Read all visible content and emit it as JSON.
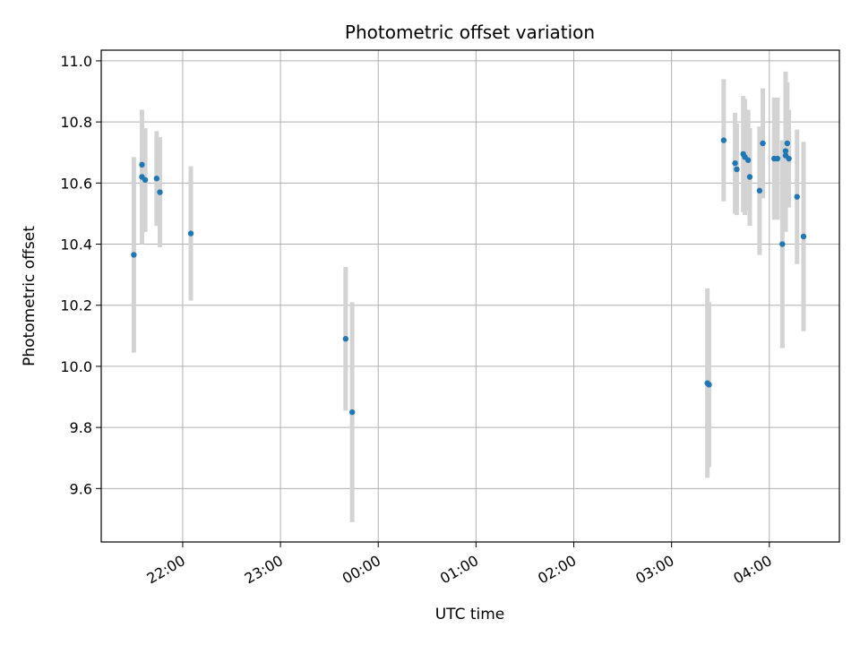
{
  "chart_data": {
    "type": "scatter",
    "title": "Photometric offset variation",
    "xlabel": "UTC time",
    "ylabel": "Photometric offset",
    "grid": true,
    "x_day_offset_hours": 0,
    "xlim": [
      "21:10",
      "04:43"
    ],
    "ylim": [
      9.425,
      11.035
    ],
    "x_ticks": [
      "22:00",
      "23:00",
      "00:00",
      "01:00",
      "02:00",
      "03:00",
      "04:00"
    ],
    "y_ticks": [
      9.6,
      9.8,
      10.0,
      10.2,
      10.4,
      10.6,
      10.8,
      11.0
    ],
    "y_tick_labels": [
      "9.6",
      "9.8",
      "10.0",
      "10.2",
      "10.4",
      "10.6",
      "10.8",
      "11.0"
    ],
    "marker_color": "#1f77b4",
    "errorbar_color": "#d3d3d3",
    "points": [
      {
        "x": "21:30",
        "y": 10.365,
        "err": 0.32
      },
      {
        "x": "21:35",
        "y": 10.62,
        "err": 0.22
      },
      {
        "x": "21:35",
        "y": 10.66,
        "err": 0.18
      },
      {
        "x": "21:37",
        "y": 10.61,
        "err": 0.17
      },
      {
        "x": "21:44",
        "y": 10.615,
        "err": 0.155
      },
      {
        "x": "21:46",
        "y": 10.57,
        "err": 0.18
      },
      {
        "x": "22:05",
        "y": 10.435,
        "err": 0.22
      },
      {
        "x": "23:40",
        "y": 10.09,
        "err": 0.235
      },
      {
        "x": "23:44",
        "y": 9.85,
        "err": 0.36
      },
      {
        "x": "03:22",
        "y": 9.945,
        "err": 0.31
      },
      {
        "x": "03:23",
        "y": 9.94,
        "err": 0.27
      },
      {
        "x": "03:32",
        "y": 10.74,
        "err": 0.2
      },
      {
        "x": "03:39",
        "y": 10.665,
        "err": 0.165
      },
      {
        "x": "03:40",
        "y": 10.645,
        "err": 0.15
      },
      {
        "x": "03:44",
        "y": 10.695,
        "err": 0.19
      },
      {
        "x": "03:45",
        "y": 10.685,
        "err": 0.19
      },
      {
        "x": "03:47",
        "y": 10.675,
        "err": 0.165
      },
      {
        "x": "03:48",
        "y": 10.62,
        "err": 0.16
      },
      {
        "x": "03:54",
        "y": 10.575,
        "err": 0.21
      },
      {
        "x": "03:56",
        "y": 10.73,
        "err": 0.18
      },
      {
        "x": "04:03",
        "y": 10.68,
        "err": 0.2
      },
      {
        "x": "04:05",
        "y": 10.68,
        "err": 0.2
      },
      {
        "x": "04:08",
        "y": 10.4,
        "err": 0.34
      },
      {
        "x": "04:10",
        "y": 10.705,
        "err": 0.26
      },
      {
        "x": "04:10",
        "y": 10.69,
        "err": 0.25
      },
      {
        "x": "04:11",
        "y": 10.73,
        "err": 0.2
      },
      {
        "x": "04:12",
        "y": 10.68,
        "err": 0.16
      },
      {
        "x": "04:17",
        "y": 10.555,
        "err": 0.22
      },
      {
        "x": "04:21",
        "y": 10.425,
        "err": 0.31
      }
    ]
  }
}
